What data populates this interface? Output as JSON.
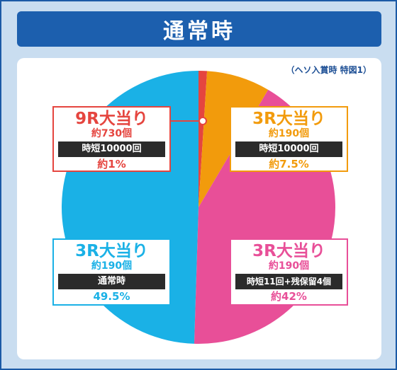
{
  "header": {
    "title": "通常時"
  },
  "note": "（ヘソ入賞時 特図1）",
  "chart_data": {
    "type": "pie",
    "start": "top",
    "direction": "clockwise",
    "slices": [
      {
        "label": "9R大当り",
        "value": 1,
        "color": "#e5453f"
      },
      {
        "label": "3R大当り",
        "value": 7.5,
        "color": "#f29b0c"
      },
      {
        "label": "3R大当り",
        "value": 42,
        "color": "#e84f98"
      },
      {
        "label": "3R大当り",
        "value": 49.5,
        "color": "#1ab1e6"
      }
    ]
  },
  "boxes": [
    {
      "title": "9R大当り",
      "count": "約730個",
      "mode": "時短10000回",
      "pct": "約1%",
      "color": "#e5453f",
      "pct_color": "#e5453f"
    },
    {
      "title": "3R大当り",
      "count": "約190個",
      "mode": "時短10000回",
      "pct": "約7.5%",
      "color": "#f29b0c",
      "pct_color": "#f29b0c"
    },
    {
      "title": "3R大当り",
      "count": "約190個",
      "mode": "時短11回+残保留4個",
      "pct": "約42%",
      "color": "#e84f98",
      "pct_color": "#e84f98"
    },
    {
      "title": "3R大当り",
      "count": "約190個",
      "mode": "通常時",
      "pct": "49.5%",
      "color": "#1ab1e6",
      "pct_color": "#1ab1e6"
    }
  ]
}
